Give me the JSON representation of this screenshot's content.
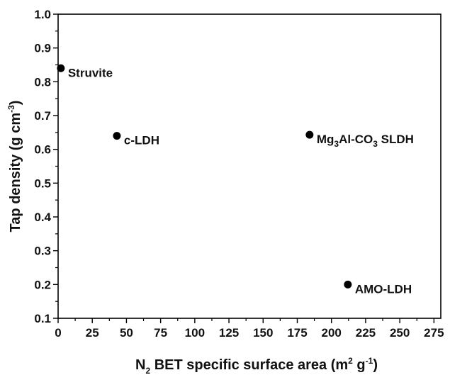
{
  "chart_data": {
    "type": "scatter",
    "xlabel": {
      "main": "N",
      "sub": "2",
      "rest": " BET specific surface area (m",
      "sup1": "2",
      "mid": " g",
      "sup2": "-1",
      "end": ")"
    },
    "ylabel": {
      "main": "Tap density (g cm",
      "sup": "-3",
      "end": ")"
    },
    "xlim": [
      0,
      280
    ],
    "ylim": [
      0.1,
      1.0
    ],
    "xticks": [
      "0",
      "25",
      "50",
      "75",
      "100",
      "125",
      "150",
      "175",
      "200",
      "225",
      "250",
      "275"
    ],
    "yticks": [
      "0.1",
      "0.2",
      "0.3",
      "0.4",
      "0.5",
      "0.6",
      "0.7",
      "0.8",
      "0.9",
      "1.0"
    ],
    "points": [
      {
        "name": "Struvite",
        "x": 2,
        "y": 0.84
      },
      {
        "name": "c-LDH",
        "x": 43,
        "y": 0.64
      },
      {
        "name": "Mg3Al-CO3 SLDH",
        "x": 184,
        "y": 0.643,
        "label_parts": [
          "Mg",
          "3",
          "Al-CO",
          "3",
          " SLDH"
        ]
      },
      {
        "name": "AMO-LDH",
        "x": 212,
        "y": 0.2
      }
    ],
    "marker_color": "#000000"
  }
}
